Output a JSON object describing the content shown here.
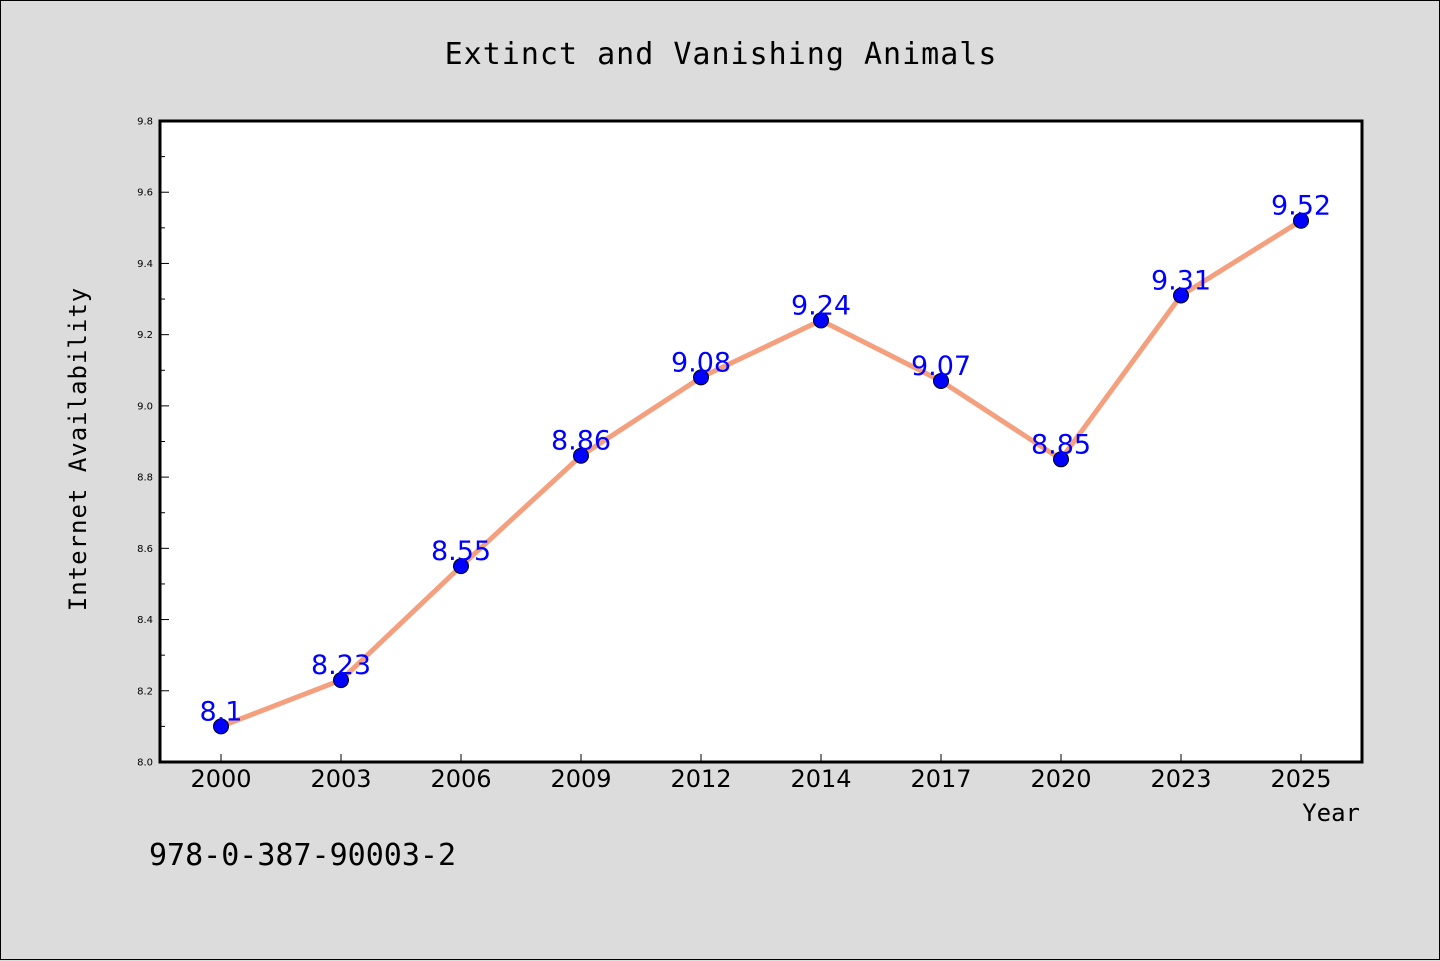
{
  "colors": {
    "background": "#dcdcdc",
    "plot_background": "#ffffff",
    "line": "#f4a07e",
    "marker": "#0000ff",
    "data_label": "#0000ff"
  },
  "footer": {
    "text": "978-0-387-90003-2"
  },
  "chart_data": {
    "type": "line",
    "title": "Extinct and Vanishing Animals",
    "xlabel": "Year",
    "ylabel": "Internet Availability",
    "categories": [
      "2000",
      "2003",
      "2006",
      "2009",
      "2012",
      "2014",
      "2017",
      "2020",
      "2023",
      "2025"
    ],
    "series": [
      {
        "values": [
          8.1,
          8.23,
          8.55,
          8.86,
          9.08,
          9.24,
          9.07,
          8.85,
          9.31,
          9.52
        ],
        "labels": [
          "8.1",
          "8.23",
          "8.55",
          "8.86",
          "9.08",
          "9.24",
          "9.07",
          "8.85",
          "9.31",
          "9.52"
        ]
      }
    ],
    "ylim": [
      8.0,
      9.8
    ],
    "yticks": [
      "8.0",
      "8.2",
      "8.4",
      "8.6",
      "8.8",
      "9.0",
      "9.2",
      "9.4",
      "9.6",
      "9.8"
    ],
    "grid": false,
    "legend": "none"
  }
}
